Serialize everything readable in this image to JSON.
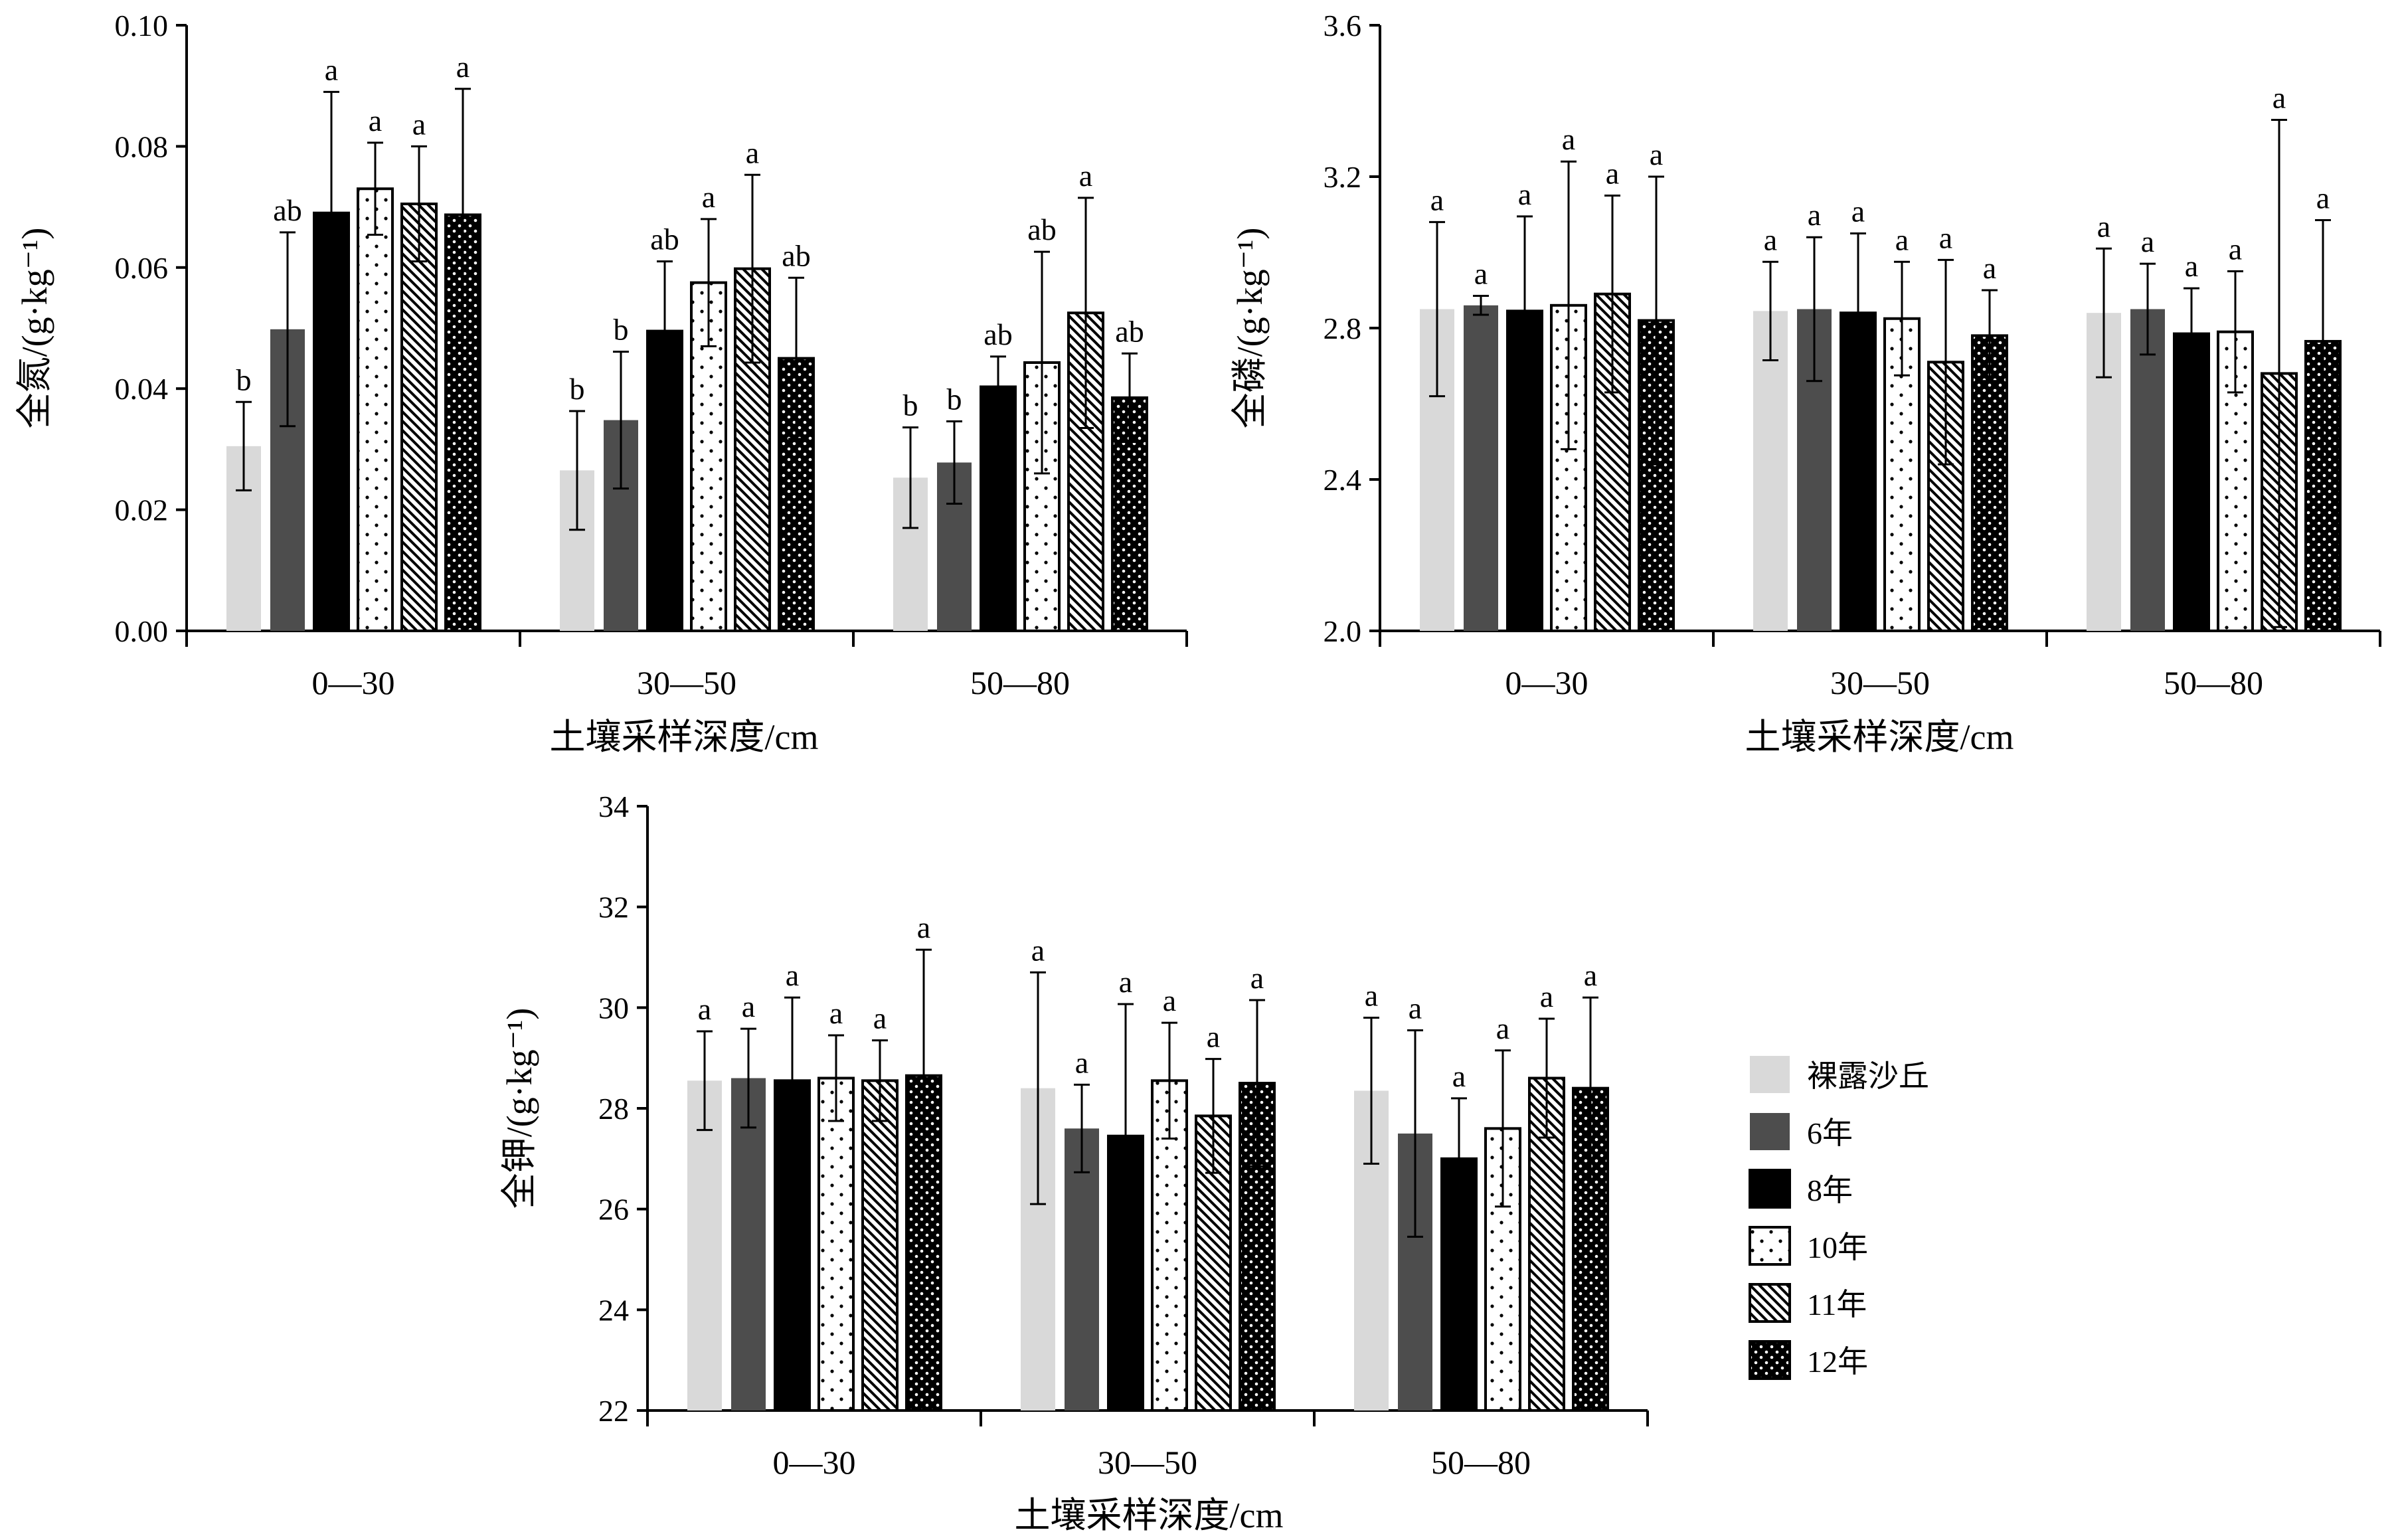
{
  "legend": {
    "items": [
      {
        "label": "裸露沙丘",
        "pattern": "light"
      },
      {
        "label": "6年",
        "pattern": "dark"
      },
      {
        "label": "8年",
        "pattern": "black"
      },
      {
        "label": "10年",
        "pattern": "dots-sparse"
      },
      {
        "label": "11年",
        "pattern": "hatch"
      },
      {
        "label": "12年",
        "pattern": "dots-dense"
      }
    ]
  },
  "colors": {
    "light": "#d9d9d9",
    "dark": "#4d4d4d",
    "black": "#000000",
    "axis": "#000000"
  },
  "chart_data": [
    {
      "type": "bar",
      "ylabel": "全氮/(g·kg⁻¹)",
      "xlabel": "土壤采样深度/cm",
      "ylim": [
        0,
        0.1
      ],
      "yticks": [
        "0.00",
        "0.02",
        "0.04",
        "0.06",
        "0.08",
        "0.10"
      ],
      "categories": [
        "0—30",
        "30—50",
        "50—80"
      ],
      "series": [
        {
          "name": "裸露沙丘",
          "values": [
            0.0305,
            0.0265,
            0.0253
          ],
          "errors": [
            0.0073,
            0.0098,
            0.0083
          ],
          "sig": [
            "b",
            "b",
            "b"
          ]
        },
        {
          "name": "6年",
          "values": [
            0.0498,
            0.0348,
            0.0278
          ],
          "errors": [
            0.016,
            0.0113,
            0.0068
          ],
          "sig": [
            "ab",
            "b",
            "b"
          ]
        },
        {
          "name": "8年",
          "values": [
            0.069,
            0.0495,
            0.0403
          ],
          "errors": [
            0.02,
            0.0115,
            0.005
          ],
          "sig": [
            "a",
            "ab",
            "ab"
          ]
        },
        {
          "name": "10年",
          "values": [
            0.073,
            0.0575,
            0.0443
          ],
          "errors": [
            0.0076,
            0.0105,
            0.0183
          ],
          "sig": [
            "a",
            "a",
            "ab"
          ]
        },
        {
          "name": "11年",
          "values": [
            0.0705,
            0.0598,
            0.0525
          ],
          "errors": [
            0.0095,
            0.0155,
            0.019
          ],
          "sig": [
            "a",
            "a",
            "a"
          ]
        },
        {
          "name": "12年",
          "values": [
            0.0687,
            0.045,
            0.0385
          ],
          "errors": [
            0.0208,
            0.0133,
            0.0073
          ],
          "sig": [
            "a",
            "ab",
            "ab"
          ]
        }
      ]
    },
    {
      "type": "bar",
      "ylabel": "全磷/(g·kg⁻¹)",
      "xlabel": "土壤采样深度/cm",
      "ylim": [
        2.0,
        3.6
      ],
      "yticks": [
        "2.0",
        "2.4",
        "2.8",
        "3.2",
        "3.6"
      ],
      "categories": [
        "0—30",
        "30—50",
        "50—80"
      ],
      "series": [
        {
          "name": "裸露沙丘",
          "values": [
            2.85,
            2.845,
            2.84
          ],
          "errors": [
            0.23,
            0.13,
            0.17
          ],
          "sig": [
            "a",
            "a",
            "a"
          ]
        },
        {
          "name": "6年",
          "values": [
            2.86,
            2.85,
            2.85
          ],
          "errors": [
            0.025,
            0.19,
            0.12
          ],
          "sig": [
            "a",
            "a",
            "a"
          ]
        },
        {
          "name": "8年",
          "values": [
            2.845,
            2.84,
            2.785
          ],
          "errors": [
            0.25,
            0.21,
            0.12
          ],
          "sig": [
            "a",
            "a",
            "a"
          ]
        },
        {
          "name": "10年",
          "values": [
            2.86,
            2.825,
            2.79
          ],
          "errors": [
            0.38,
            0.15,
            0.16
          ],
          "sig": [
            "a",
            "a",
            "a"
          ]
        },
        {
          "name": "11年",
          "values": [
            2.89,
            2.71,
            2.68
          ],
          "errors": [
            0.26,
            0.27,
            0.67
          ],
          "sig": [
            "a",
            "a",
            "a"
          ]
        },
        {
          "name": "12年",
          "values": [
            2.82,
            2.78,
            2.765
          ],
          "errors": [
            0.38,
            0.12,
            0.32
          ],
          "sig": [
            "a",
            "a",
            "a"
          ]
        }
      ]
    },
    {
      "type": "bar",
      "ylabel": "全钾/(g·kg⁻¹)",
      "xlabel": "土壤采样深度/cm",
      "ylim": [
        22,
        34
      ],
      "yticks": [
        "22",
        "24",
        "26",
        "28",
        "30",
        "32",
        "34"
      ],
      "categories": [
        "0—30",
        "30—50",
        "50—80"
      ],
      "series": [
        {
          "name": "裸露沙丘",
          "values": [
            28.55,
            28.4,
            28.35
          ],
          "errors": [
            0.98,
            2.3,
            1.45
          ],
          "sig": [
            "a",
            "a",
            "a"
          ]
        },
        {
          "name": "6年",
          "values": [
            28.6,
            27.6,
            27.5
          ],
          "errors": [
            0.98,
            0.87,
            2.05
          ],
          "sig": [
            "a",
            "a",
            "a"
          ]
        },
        {
          "name": "8年",
          "values": [
            28.55,
            27.45,
            27.0
          ],
          "errors": [
            1.65,
            2.62,
            1.2
          ],
          "sig": [
            "a",
            "a",
            "a"
          ]
        },
        {
          "name": "10年",
          "values": [
            28.6,
            28.55,
            27.6
          ],
          "errors": [
            0.85,
            1.15,
            1.55
          ],
          "sig": [
            "a",
            "a",
            "a"
          ]
        },
        {
          "name": "11年",
          "values": [
            28.55,
            27.85,
            28.6
          ],
          "errors": [
            0.8,
            1.13,
            1.18
          ],
          "sig": [
            "a",
            "a",
            "a"
          ]
        },
        {
          "name": "12年",
          "values": [
            28.65,
            28.5,
            28.4
          ],
          "errors": [
            2.5,
            1.65,
            1.8
          ],
          "sig": [
            "a",
            "a",
            "a"
          ]
        }
      ]
    }
  ]
}
